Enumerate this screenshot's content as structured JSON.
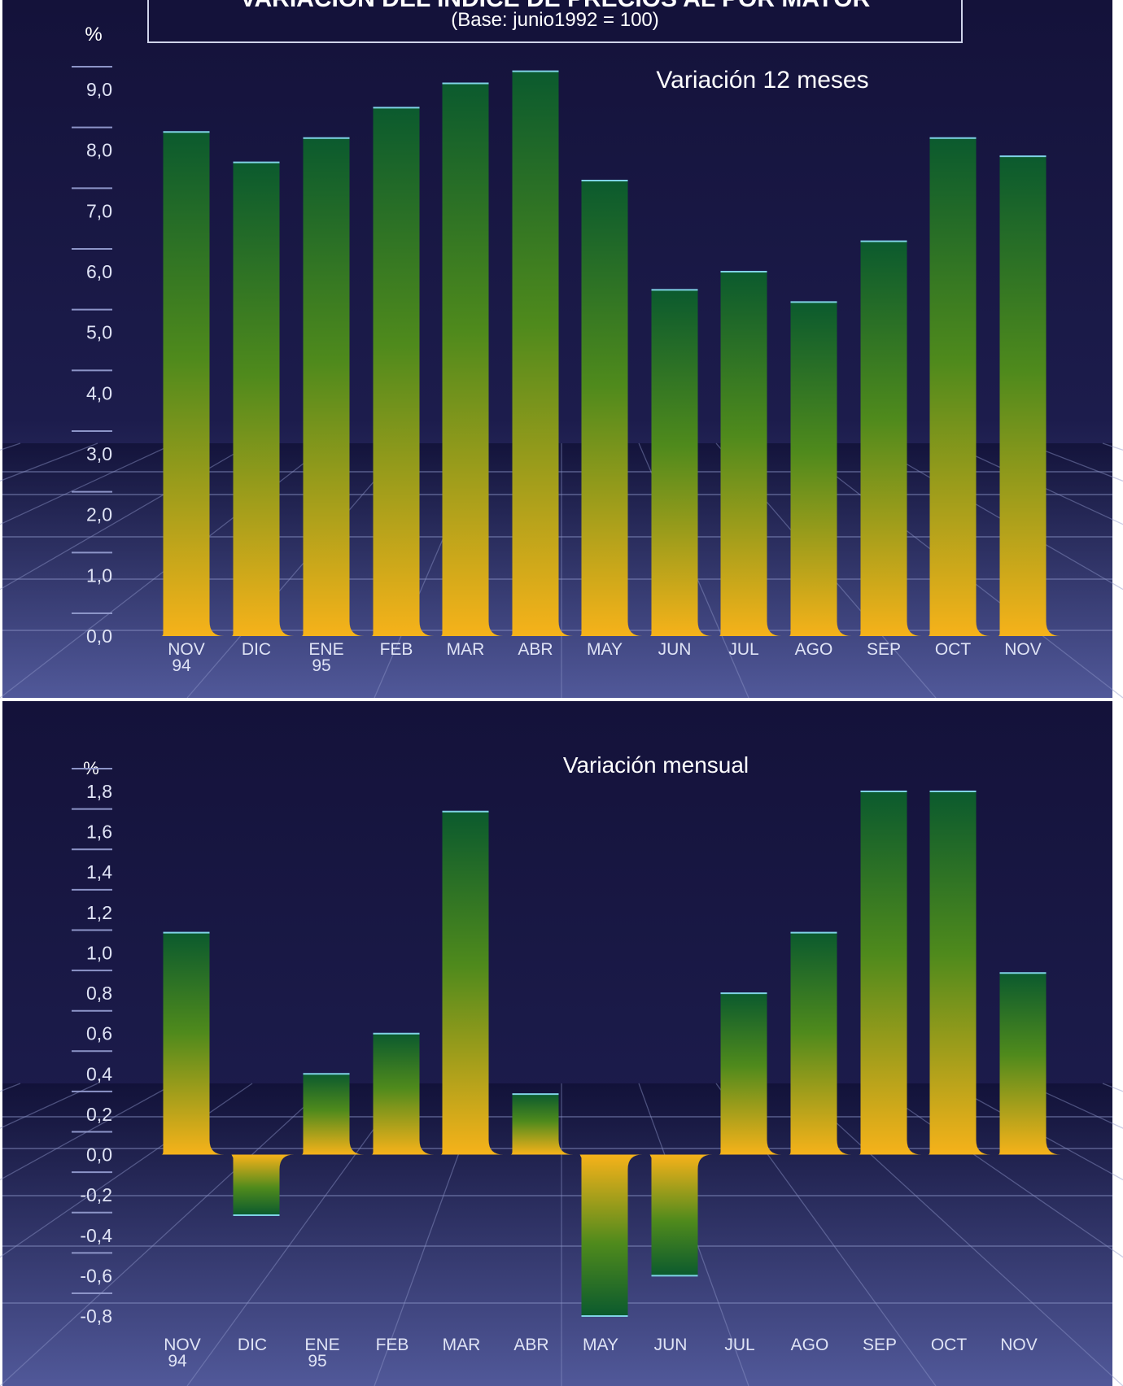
{
  "header": {
    "title": "VARIACION DEL INDICE DE PRECIOS AL POR MAYOR",
    "subtitle": "(Base:  junio1992 = 100)"
  },
  "colors": {
    "background_top": "#14123a",
    "background_bottom": "#4a5191",
    "bar_top": "#0b5a2e",
    "bar_mid": "#4f8a1c",
    "bar_bottom": "#f6b21a",
    "grid": "#8d95c8"
  },
  "chart_data": [
    {
      "type": "bar",
      "title": "Variación 12 meses",
      "ylabel": "%",
      "categories": [
        "NOV 94",
        "DIC",
        "ENE 95",
        "FEB",
        "MAR",
        "ABR",
        "MAY",
        "JUN",
        "JUL",
        "AGO",
        "SEP",
        "OCT",
        "NOV"
      ],
      "values": [
        8.3,
        7.8,
        8.2,
        8.7,
        9.1,
        9.3,
        7.5,
        5.7,
        6.0,
        5.5,
        6.5,
        8.2,
        7.9
      ],
      "ylim": [
        0,
        9.0
      ],
      "yticks": [
        "0,0",
        "1,0",
        "2,0",
        "3,0",
        "4,0",
        "5,0",
        "6,0",
        "7,0",
        "8,0",
        "9,0"
      ],
      "grid": true,
      "legend": "none"
    },
    {
      "type": "bar",
      "title": "Variación mensual",
      "ylabel": "%",
      "categories": [
        "NOV 94",
        "DIC",
        "ENE 95",
        "FEB",
        "MAR",
        "ABR",
        "MAY",
        "JUN",
        "JUL",
        "AGO",
        "SEP",
        "OCT",
        "NOV"
      ],
      "values": [
        1.1,
        -0.3,
        0.4,
        0.6,
        1.7,
        0.3,
        -0.8,
        -0.6,
        0.8,
        1.1,
        1.8,
        1.8,
        0.9
      ],
      "ylim": [
        -0.8,
        1.8
      ],
      "yticks": [
        "-0,8",
        "-0,6",
        "-0,4",
        "-0,2",
        "0,0",
        "0,2",
        "0,4",
        "0,6",
        "0,8",
        "1,0",
        "1,2",
        "1,4",
        "1,6",
        "1,8"
      ],
      "grid": true,
      "legend": "none"
    }
  ]
}
